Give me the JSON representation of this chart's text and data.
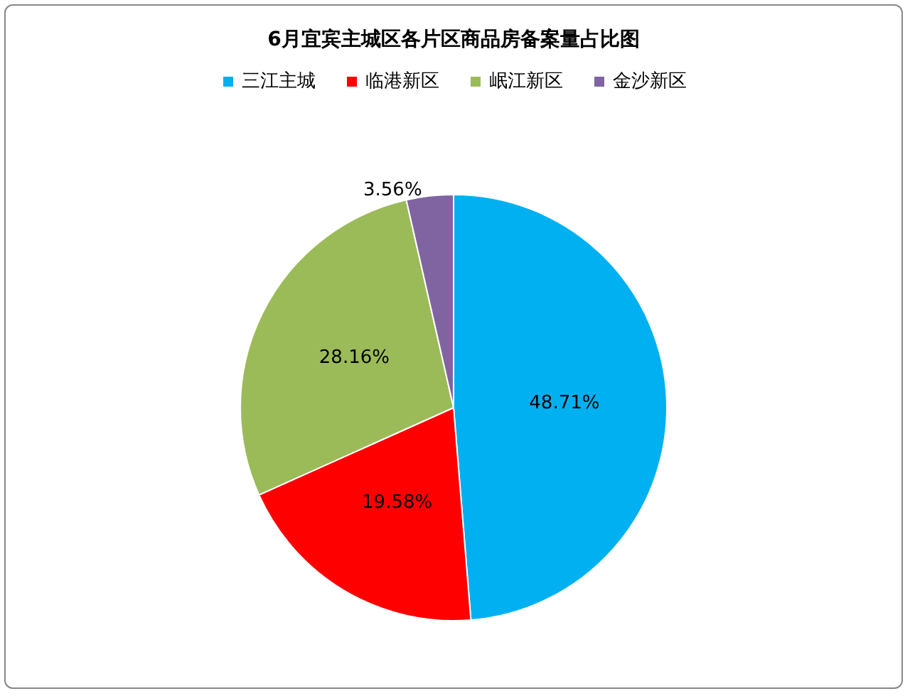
{
  "chart_data": {
    "type": "pie",
    "title": "6月宜宾主城区各片区商品房备案量占比图",
    "categories": [
      "三江主城",
      "临港新区",
      "岷江新区",
      "金沙新区"
    ],
    "values": [
      48.71,
      19.58,
      28.16,
      3.56
    ],
    "colors": [
      "#00b0f0",
      "#ff0000",
      "#9bbb59",
      "#8064a2"
    ],
    "value_labels": [
      "48.71%",
      "19.58%",
      "28.16%",
      "3.56%"
    ],
    "legend": "top"
  }
}
